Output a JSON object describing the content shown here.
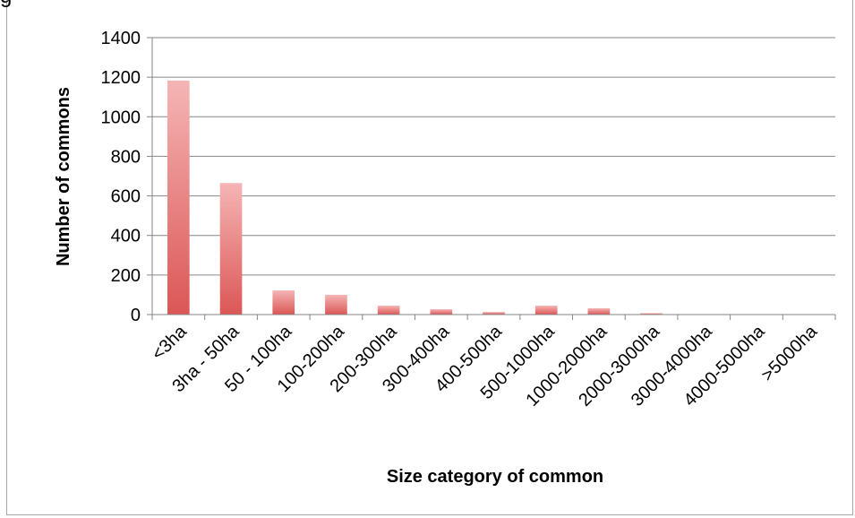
{
  "header_fragment": "g",
  "chart_data": {
    "type": "bar",
    "title": "",
    "xlabel": "Size category of common",
    "ylabel": "Number of commons",
    "ylim": [
      0,
      1400
    ],
    "yticks": [
      0,
      200,
      400,
      600,
      800,
      1000,
      1200,
      1400
    ],
    "grid": true,
    "legend": "none",
    "categories": [
      "<3ha",
      "3ha - 50ha",
      "50 - 100ha",
      "100-200ha",
      "200-300ha",
      "300-400ha",
      "400-500ha",
      "500-1000ha",
      "1000-2000ha",
      "2000-3000ha",
      "3000-4000ha",
      "4000-5000ha",
      ">5000ha"
    ],
    "values": [
      1183,
      665,
      122,
      100,
      45,
      27,
      13,
      45,
      32,
      7,
      2,
      1,
      1
    ],
    "colors": {
      "bar_top": "#f5b5b5",
      "bar_bottom": "#dc5656",
      "grid": "#868686",
      "axis": "#868686"
    }
  }
}
